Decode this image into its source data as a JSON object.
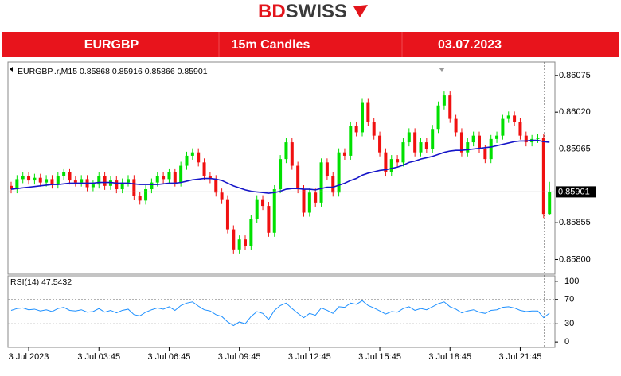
{
  "logo": {
    "left": "BD",
    "right": "SWISS"
  },
  "banner": {
    "pair": "EURGBP",
    "timeframe": "15m Candles",
    "date": "03.07.2023"
  },
  "chart_data": [
    {
      "type": "candlestick",
      "title": "EURGBP..r,M15  0.85868 0.85916 0.85866 0.85901",
      "up_color": "#00e000",
      "down_color": "#f01010",
      "x": [
        null,
        null,
        null,
        "3 Jul 2023",
        null,
        null,
        null,
        null,
        null,
        null,
        null,
        null,
        null,
        null,
        null,
        "3 Jul 03:45",
        null,
        null,
        null,
        null,
        null,
        null,
        null,
        null,
        null,
        null,
        null,
        "3 Jul 06:45",
        null,
        null,
        null,
        null,
        null,
        null,
        null,
        null,
        null,
        null,
        null,
        "3 Jul 09:45",
        null,
        null,
        null,
        null,
        null,
        null,
        null,
        null,
        null,
        null,
        null,
        "3 Jul 12:45",
        null,
        null,
        null,
        null,
        null,
        null,
        null,
        null,
        null,
        null,
        null,
        "3 Jul 15:45",
        null,
        null,
        null,
        null,
        null,
        null,
        null,
        null,
        null,
        null,
        null,
        "3 Jul 18:45",
        null,
        null,
        null,
        null,
        null,
        null,
        null,
        null,
        null,
        null,
        null,
        "3 Jul 21:45",
        null,
        null,
        null,
        null,
        null
      ],
      "open": [
        0.8591,
        0.85905,
        0.8592,
        0.85925,
        0.85918,
        0.85922,
        0.85915,
        0.8592,
        0.85912,
        0.85925,
        0.8593,
        0.85918,
        0.85915,
        0.8592,
        0.85908,
        0.85912,
        0.85925,
        0.8591,
        0.85918,
        0.85905,
        0.85915,
        0.8592,
        0.85895,
        0.85888,
        0.85905,
        0.85915,
        0.85925,
        0.8592,
        0.8593,
        0.85915,
        0.8594,
        0.85955,
        0.8596,
        0.85945,
        0.85925,
        0.8592,
        0.859,
        0.8589,
        0.85845,
        0.85815,
        0.8583,
        0.8582,
        0.8586,
        0.8589,
        0.8588,
        0.8584,
        0.85905,
        0.8595,
        0.85975,
        0.8594,
        0.85905,
        0.8587,
        0.859,
        0.85885,
        0.85945,
        0.85925,
        0.859,
        0.8596,
        0.85955,
        0.86,
        0.8599,
        0.86035,
        0.86005,
        0.85985,
        0.8596,
        0.8593,
        0.8595,
        0.85945,
        0.85975,
        0.8599,
        0.8596,
        0.85975,
        0.85965,
        0.85995,
        0.8603,
        0.86045,
        0.8601,
        0.8599,
        0.8596,
        0.85975,
        0.85985,
        0.85965,
        0.8595,
        0.8598,
        0.85985,
        0.8601,
        0.86015,
        0.86005,
        0.85985,
        0.85975,
        0.8598,
        0.85982,
        0.85868
      ],
      "high": [
        0.85916,
        0.85926,
        0.85931,
        0.85931,
        0.85928,
        0.85928,
        0.85926,
        0.85926,
        0.85931,
        0.85936,
        0.85936,
        0.85924,
        0.85926,
        0.85926,
        0.85918,
        0.85931,
        0.85931,
        0.85924,
        0.85924,
        0.85921,
        0.85926,
        0.85926,
        0.85901,
        0.85911,
        0.85921,
        0.85931,
        0.85931,
        0.85936,
        0.85936,
        0.85946,
        0.85961,
        0.85966,
        0.85966,
        0.85951,
        0.85931,
        0.85926,
        0.85906,
        0.85896,
        0.85851,
        0.85836,
        0.85836,
        0.85866,
        0.85896,
        0.85896,
        0.85886,
        0.85911,
        0.85956,
        0.85981,
        0.85981,
        0.85946,
        0.85911,
        0.85906,
        0.85906,
        0.85951,
        0.85951,
        0.85931,
        0.85966,
        0.85966,
        0.86006,
        0.86006,
        0.86041,
        0.86041,
        0.86011,
        0.85991,
        0.85966,
        0.85956,
        0.85956,
        0.85981,
        0.85996,
        0.85996,
        0.85981,
        0.85981,
        0.86001,
        0.86036,
        0.86051,
        0.86051,
        0.86016,
        0.85996,
        0.85981,
        0.85991,
        0.85991,
        0.85971,
        0.85986,
        0.85991,
        0.86016,
        0.86021,
        0.86021,
        0.86011,
        0.85991,
        0.85986,
        0.85988,
        0.85988,
        0.85916
      ],
      "low": [
        0.85899,
        0.85899,
        0.85914,
        0.85912,
        0.85912,
        0.85909,
        0.85909,
        0.85906,
        0.85906,
        0.85919,
        0.85912,
        0.85909,
        0.85909,
        0.85902,
        0.85902,
        0.85906,
        0.85904,
        0.85904,
        0.85899,
        0.85899,
        0.85909,
        0.85889,
        0.85882,
        0.85882,
        0.85899,
        0.85909,
        0.85914,
        0.85914,
        0.85909,
        0.85909,
        0.85934,
        0.85949,
        0.85939,
        0.85919,
        0.85914,
        0.85894,
        0.85884,
        0.85839,
        0.85809,
        0.85809,
        0.85814,
        0.85814,
        0.85854,
        0.85874,
        0.85834,
        0.85834,
        0.85899,
        0.85944,
        0.85934,
        0.85899,
        0.85864,
        0.85864,
        0.85879,
        0.85879,
        0.85919,
        0.85894,
        0.85894,
        0.85949,
        0.85949,
        0.85984,
        0.85984,
        0.85999,
        0.85979,
        0.85954,
        0.85924,
        0.85924,
        0.85939,
        0.85939,
        0.85969,
        0.85954,
        0.85954,
        0.85959,
        0.85959,
        0.85989,
        0.86024,
        0.86004,
        0.85984,
        0.85954,
        0.85954,
        0.85969,
        0.85959,
        0.85944,
        0.85944,
        0.85974,
        0.85979,
        0.86004,
        0.85999,
        0.85979,
        0.85969,
        0.85969,
        0.85974,
        0.85862,
        0.85866
      ],
      "close": [
        0.85905,
        0.8592,
        0.85925,
        0.85918,
        0.85922,
        0.85915,
        0.8592,
        0.85912,
        0.85925,
        0.8593,
        0.85918,
        0.85915,
        0.8592,
        0.85908,
        0.85912,
        0.85925,
        0.8591,
        0.85918,
        0.85905,
        0.85915,
        0.8592,
        0.85895,
        0.85888,
        0.85905,
        0.85915,
        0.85925,
        0.8592,
        0.8593,
        0.85915,
        0.8594,
        0.85955,
        0.8596,
        0.85945,
        0.85925,
        0.8592,
        0.859,
        0.8589,
        0.85845,
        0.85815,
        0.8583,
        0.8582,
        0.8586,
        0.8589,
        0.8588,
        0.8584,
        0.85905,
        0.8595,
        0.85975,
        0.8594,
        0.85905,
        0.8587,
        0.859,
        0.85885,
        0.85945,
        0.85925,
        0.859,
        0.8596,
        0.85955,
        0.86,
        0.8599,
        0.86035,
        0.86005,
        0.85985,
        0.8596,
        0.8593,
        0.8595,
        0.85945,
        0.85975,
        0.8599,
        0.8596,
        0.85975,
        0.85965,
        0.85995,
        0.8603,
        0.86045,
        0.8601,
        0.8599,
        0.8596,
        0.85975,
        0.85985,
        0.85965,
        0.8595,
        0.8598,
        0.85985,
        0.8601,
        0.86015,
        0.86005,
        0.85985,
        0.85975,
        0.8598,
        0.85982,
        0.85868,
        0.85901
      ],
      "moving_average": {
        "color": "#1414c8",
        "values": [
          0.85905,
          0.85906,
          0.85907,
          0.85908,
          0.85909,
          0.8591,
          0.85911,
          0.85912,
          0.85912,
          0.85913,
          0.85914,
          0.85914,
          0.85914,
          0.85914,
          0.85914,
          0.85915,
          0.85915,
          0.85915,
          0.85914,
          0.85914,
          0.85914,
          0.85913,
          0.85912,
          0.85912,
          0.85912,
          0.85912,
          0.85913,
          0.85914,
          0.85914,
          0.85915,
          0.85917,
          0.85919,
          0.8592,
          0.85921,
          0.85921,
          0.8592,
          0.85918,
          0.85914,
          0.8591,
          0.85907,
          0.85904,
          0.85902,
          0.85901,
          0.859,
          0.85899,
          0.859,
          0.85902,
          0.85905,
          0.85906,
          0.85906,
          0.85905,
          0.85905,
          0.85904,
          0.85906,
          0.85908,
          0.85908,
          0.85911,
          0.85914,
          0.85918,
          0.85921,
          0.85926,
          0.85929,
          0.85931,
          0.85933,
          0.85934,
          0.85936,
          0.85938,
          0.85941,
          0.85945,
          0.85947,
          0.8595,
          0.85952,
          0.85954,
          0.85957,
          0.8596,
          0.85962,
          0.85963,
          0.85963,
          0.85964,
          0.85965,
          0.85966,
          0.85967,
          0.85968,
          0.8597,
          0.85972,
          0.85974,
          0.85976,
          0.85977,
          0.85977,
          0.85978,
          0.85978,
          0.85976,
          0.85975
        ]
      },
      "ylim": [
        0.85778,
        0.86095
      ],
      "yticks": [
        0.86075,
        {
          "value": 0.8602,
          "label": "0.86020"
        },
        0.85965,
        0.85855,
        {
          "value": 0.858,
          "label": "0.85800"
        }
      ]
    },
    {
      "type": "line",
      "title": "RSI(14) 47.5432",
      "color": "#1e90ff",
      "values": [
        52,
        55,
        56,
        53,
        54,
        51,
        53,
        50,
        55,
        57,
        52,
        51,
        53,
        49,
        50,
        55,
        49,
        52,
        48,
        52,
        54,
        45,
        43,
        49,
        53,
        56,
        54,
        58,
        52,
        60,
        64,
        66,
        59,
        53,
        51,
        45,
        42,
        33,
        27,
        33,
        30,
        42,
        50,
        47,
        37,
        52,
        60,
        64,
        55,
        47,
        40,
        47,
        44,
        56,
        52,
        47,
        58,
        57,
        64,
        62,
        68,
        60,
        56,
        51,
        46,
        50,
        49,
        55,
        58,
        52,
        55,
        53,
        58,
        63,
        66,
        58,
        54,
        48,
        51,
        53,
        49,
        47,
        52,
        53,
        57,
        58,
        56,
        52,
        50,
        51,
        51,
        40,
        47.5432
      ],
      "ylim": [
        -9,
        109
      ],
      "yticks": [
        100,
        70,
        30,
        0
      ],
      "levels": [
        70,
        30
      ]
    }
  ]
}
